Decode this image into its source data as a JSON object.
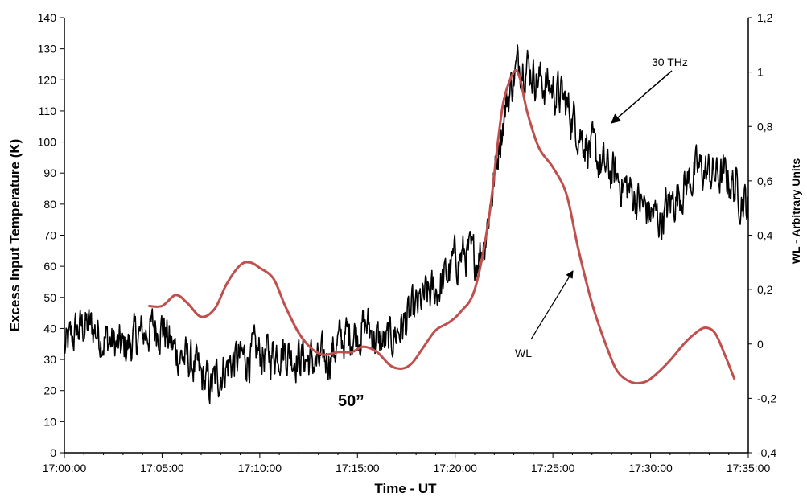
{
  "chart_data": {
    "type": "line",
    "xlabel": "Time  - UT",
    "ylabel_left": "Excess  Input  Temperature (K)",
    "ylabel_right": "WL - Arbitrary Units",
    "x_ticks": [
      "17:00:00",
      "17:05:00",
      "17:10:00",
      "17:15:00",
      "17:20:00",
      "17:25:00",
      "17:30:00",
      "17:35:00"
    ],
    "xlim_minutes": [
      0,
      35
    ],
    "y_left_ticks": [
      "0",
      "10",
      "20",
      "30",
      "40",
      "50",
      "60",
      "70",
      "80",
      "90",
      "100",
      "110",
      "120",
      "130",
      "140"
    ],
    "ylim_left": [
      0,
      140
    ],
    "y_right_ticks": [
      "-0,4",
      "-0,2",
      "0",
      "0,2",
      "0,4",
      "0,6",
      "0,8",
      "1",
      "1,2"
    ],
    "ylim_right": [
      -0.4,
      1.2
    ],
    "grid": false,
    "series": [
      {
        "name": "30 THz",
        "axis": "left",
        "color": "#000000",
        "noise": 4,
        "x_minutes": [
          0,
          0.5,
          1,
          1.5,
          2,
          2.5,
          3,
          3.5,
          4,
          4.5,
          5,
          5.5,
          6,
          6.5,
          7,
          7.5,
          8,
          8.5,
          9,
          9.5,
          10,
          10.5,
          11,
          11.5,
          12,
          12.5,
          13,
          13.5,
          14,
          14.5,
          15,
          15.5,
          16,
          16.5,
          17,
          17.5,
          18,
          18.5,
          19,
          19.5,
          20,
          20.5,
          21,
          21.5,
          22,
          22.3,
          22.6,
          23,
          23.3,
          23.6,
          24,
          24.5,
          25,
          25.5,
          26,
          26.5,
          27,
          27.5,
          28,
          28.5,
          29,
          29.5,
          30,
          30.5,
          31,
          31.5,
          32,
          32.5,
          33,
          33.5,
          34,
          34.5,
          35
        ],
        "values": [
          33,
          38,
          41,
          40,
          37,
          35,
          33,
          36,
          38,
          40,
          41,
          34,
          31,
          29,
          24,
          21,
          26,
          29,
          30,
          31,
          32,
          31,
          34,
          32,
          31,
          30,
          28,
          31,
          35,
          38,
          39,
          41,
          36,
          35,
          39,
          42,
          46,
          50,
          52,
          56,
          62,
          64,
          62,
          68,
          88,
          102,
          112,
          121,
          126,
          126,
          122,
          119,
          117,
          114,
          108,
          102,
          97,
          92,
          90,
          87,
          84,
          80,
          77,
          75,
          80,
          84,
          88,
          91,
          90,
          89,
          88,
          84,
          79
        ]
      },
      {
        "name": "WL",
        "axis": "right",
        "color": "#c0504d",
        "x_minutes": [
          4.3,
          5,
          5.7,
          6.3,
          7,
          7.7,
          8.3,
          9,
          9.5,
          10,
          10.7,
          11.3,
          12,
          12.7,
          13.3,
          14,
          14.7,
          15.3,
          16,
          16.7,
          17.3,
          17.8,
          18.3,
          19,
          19.7,
          20.3,
          21,
          21.7,
          22.2,
          22.5,
          23,
          23.3,
          23.7,
          24.3,
          25,
          25.7,
          26.3,
          27,
          27.7,
          28.3,
          29,
          29.7,
          30.3,
          31,
          31.7,
          32.3,
          32.8,
          33.3,
          33.8,
          34.3
        ],
        "values": [
          0.14,
          0.14,
          0.18,
          0.15,
          0.1,
          0.13,
          0.22,
          0.29,
          0.3,
          0.28,
          0.24,
          0.14,
          0.04,
          -0.02,
          -0.04,
          -0.03,
          -0.03,
          -0.01,
          -0.03,
          -0.08,
          -0.09,
          -0.07,
          -0.02,
          0.05,
          0.08,
          0.12,
          0.2,
          0.45,
          0.75,
          0.9,
          1.0,
          0.98,
          0.85,
          0.72,
          0.65,
          0.55,
          0.35,
          0.15,
          0.0,
          -0.1,
          -0.14,
          -0.14,
          -0.11,
          -0.06,
          0.0,
          0.04,
          0.06,
          0.04,
          -0.04,
          -0.13
        ]
      }
    ],
    "annotations": [
      {
        "text": "30 THz",
        "arrow": true
      },
      {
        "text": "WL",
        "arrow": true
      },
      {
        "text": "50’’",
        "arrow": false
      }
    ]
  }
}
